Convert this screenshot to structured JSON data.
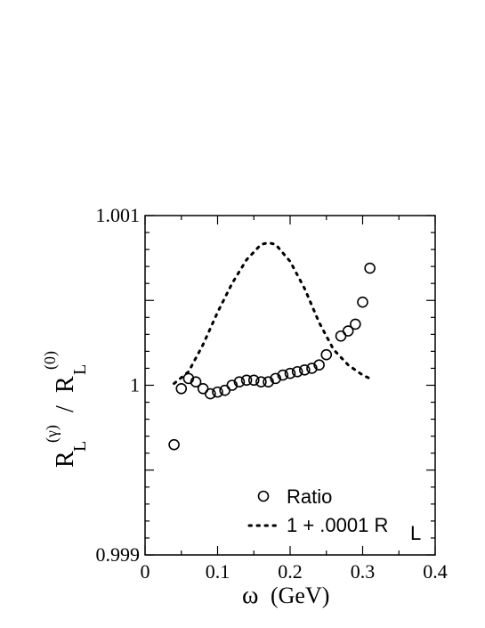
{
  "chart_data": {
    "type": "scatter",
    "xlabel": "ω (GeV)",
    "ylabel": "R_L^(γ) / R_L^(0)",
    "xlim": [
      0,
      0.4
    ],
    "ylim": [
      0.999,
      1.001
    ],
    "x_ticks": [
      {
        "value": 0,
        "label": "0"
      },
      {
        "value": 0.1,
        "label": "0.1"
      },
      {
        "value": 0.2,
        "label": "0.2"
      },
      {
        "value": 0.3,
        "label": "0.3"
      },
      {
        "value": 0.4,
        "label": "0.4"
      }
    ],
    "y_ticks": [
      {
        "value": 0.999,
        "label": "0.999"
      },
      {
        "value": 1.0,
        "label": "1"
      },
      {
        "value": 1.001,
        "label": "1.001"
      }
    ],
    "grid": false,
    "legend_position": "bottom-right",
    "series": [
      {
        "name": "Ratio",
        "style": "open-circle",
        "x": [
          0.04,
          0.05,
          0.06,
          0.07,
          0.08,
          0.09,
          0.1,
          0.11,
          0.12,
          0.13,
          0.14,
          0.15,
          0.16,
          0.17,
          0.18,
          0.19,
          0.2,
          0.21,
          0.22,
          0.23,
          0.24,
          0.25,
          0.27,
          0.28,
          0.29,
          0.3,
          0.31
        ],
        "y": [
          0.99965,
          0.99998,
          1.00004,
          1.00002,
          0.99998,
          0.99995,
          0.99996,
          0.99997,
          1.0,
          1.00002,
          1.00003,
          1.00003,
          1.00002,
          1.00002,
          1.00004,
          1.00006,
          1.00007,
          1.00008,
          1.00009,
          1.0001,
          1.00012,
          1.00018,
          1.00029,
          1.00032,
          1.00036,
          1.00049,
          1.00069
        ]
      },
      {
        "name": "1 + .0001 R_L",
        "style": "dotted-line",
        "x": [
          0.04,
          0.06,
          0.08,
          0.1,
          0.12,
          0.14,
          0.16,
          0.17,
          0.18,
          0.2,
          0.22,
          0.24,
          0.26,
          0.28,
          0.3,
          0.31
        ],
        "y": [
          1.00001,
          1.00008,
          1.00024,
          1.00043,
          1.0006,
          1.00074,
          1.00083,
          1.00084,
          1.00083,
          1.00073,
          1.00057,
          1.00037,
          1.00021,
          1.00012,
          1.00006,
          1.00004
        ]
      }
    ],
    "legend": {
      "ratio_label": "Ratio",
      "formula_main": "1 + .0001 R",
      "formula_sub": "L"
    },
    "ylabel_parts": {
      "R1": "R",
      "L1": "L",
      "gamma": "(γ)",
      "slash": "/",
      "R2": "R",
      "L2": "L",
      "zero": "(0)"
    },
    "xlabel_parts": {
      "omega": "ω",
      "unit": "(GeV)"
    }
  }
}
